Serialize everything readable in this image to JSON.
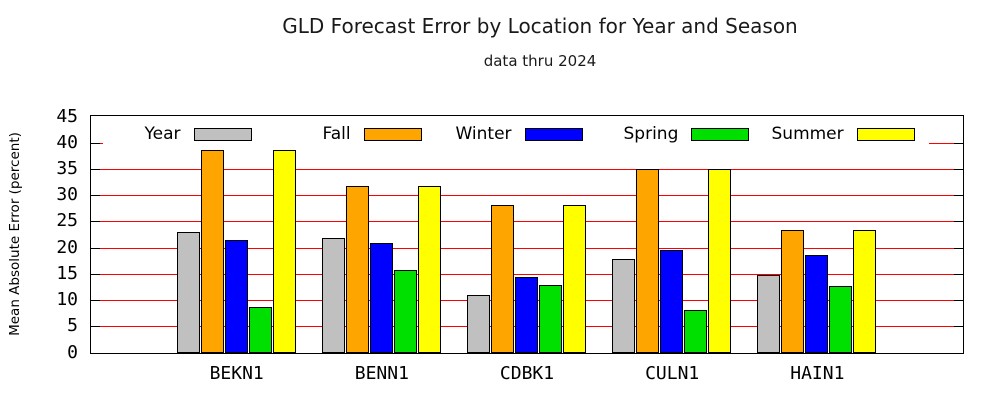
{
  "header": {
    "title": "GLD Forecast Error by Location for Year and Season",
    "subtitle": "data thru 2024"
  },
  "chart_data": {
    "type": "bar",
    "title": "GLD Forecast Error by Location for Year and Season",
    "subtitle": "data thru 2024",
    "xlabel": "",
    "ylabel": "Mean Absolute Error (percent)",
    "ylim": [
      0,
      45
    ],
    "ytick_step": 5,
    "ytick_labels": [
      "0",
      "5",
      "10",
      "15",
      "20",
      "25",
      "30",
      "35",
      "40",
      "45"
    ],
    "grid": "horizontal gridlines every 5, red, with black inward tick marks on left and right borders",
    "legend_position": "single row inside plot at top, white opaque band",
    "categories": [
      "BEKN1",
      "BENN1",
      "CDBK1",
      "CULN1",
      "HAIN1"
    ],
    "series": [
      {
        "name": "Year",
        "color": "#C0C0C0",
        "values": [
          23.1,
          21.9,
          11.0,
          17.9,
          14.8
        ]
      },
      {
        "name": "Fall",
        "color": "#FFA500",
        "values": [
          38.8,
          31.8,
          28.2,
          35.0,
          23.5
        ]
      },
      {
        "name": "Winter",
        "color": "#0000FF",
        "values": [
          21.6,
          20.9,
          14.5,
          19.7,
          18.7
        ]
      },
      {
        "name": "Spring",
        "color": "#00E000",
        "values": [
          8.7,
          15.9,
          13.0,
          8.2,
          12.8
        ]
      },
      {
        "name": "Summer",
        "color": "#FFFF00",
        "values": [
          38.8,
          31.8,
          28.2,
          35.0,
          23.5
        ]
      }
    ],
    "gridline_color": "#FF0000",
    "axis_color": "#000000",
    "bar_border_color": "#000000"
  }
}
